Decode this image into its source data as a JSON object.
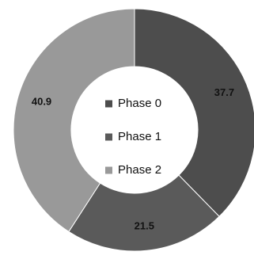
{
  "chart_data": {
    "type": "pie",
    "variant": "donut",
    "categories": [
      "Phase 0",
      "Phase 1",
      "Phase 2"
    ],
    "values": [
      37.7,
      21.5,
      40.9
    ],
    "data_labels": [
      "37.7",
      "21.5",
      "40.9"
    ],
    "colors": [
      "#4d4d4d",
      "#5a5a5a",
      "#999999"
    ],
    "legend": {
      "placement": "center",
      "entries": [
        "Phase 0",
        "Phase 1",
        "Phase 2"
      ]
    },
    "title": "",
    "slice_order": "clockwise from top"
  }
}
